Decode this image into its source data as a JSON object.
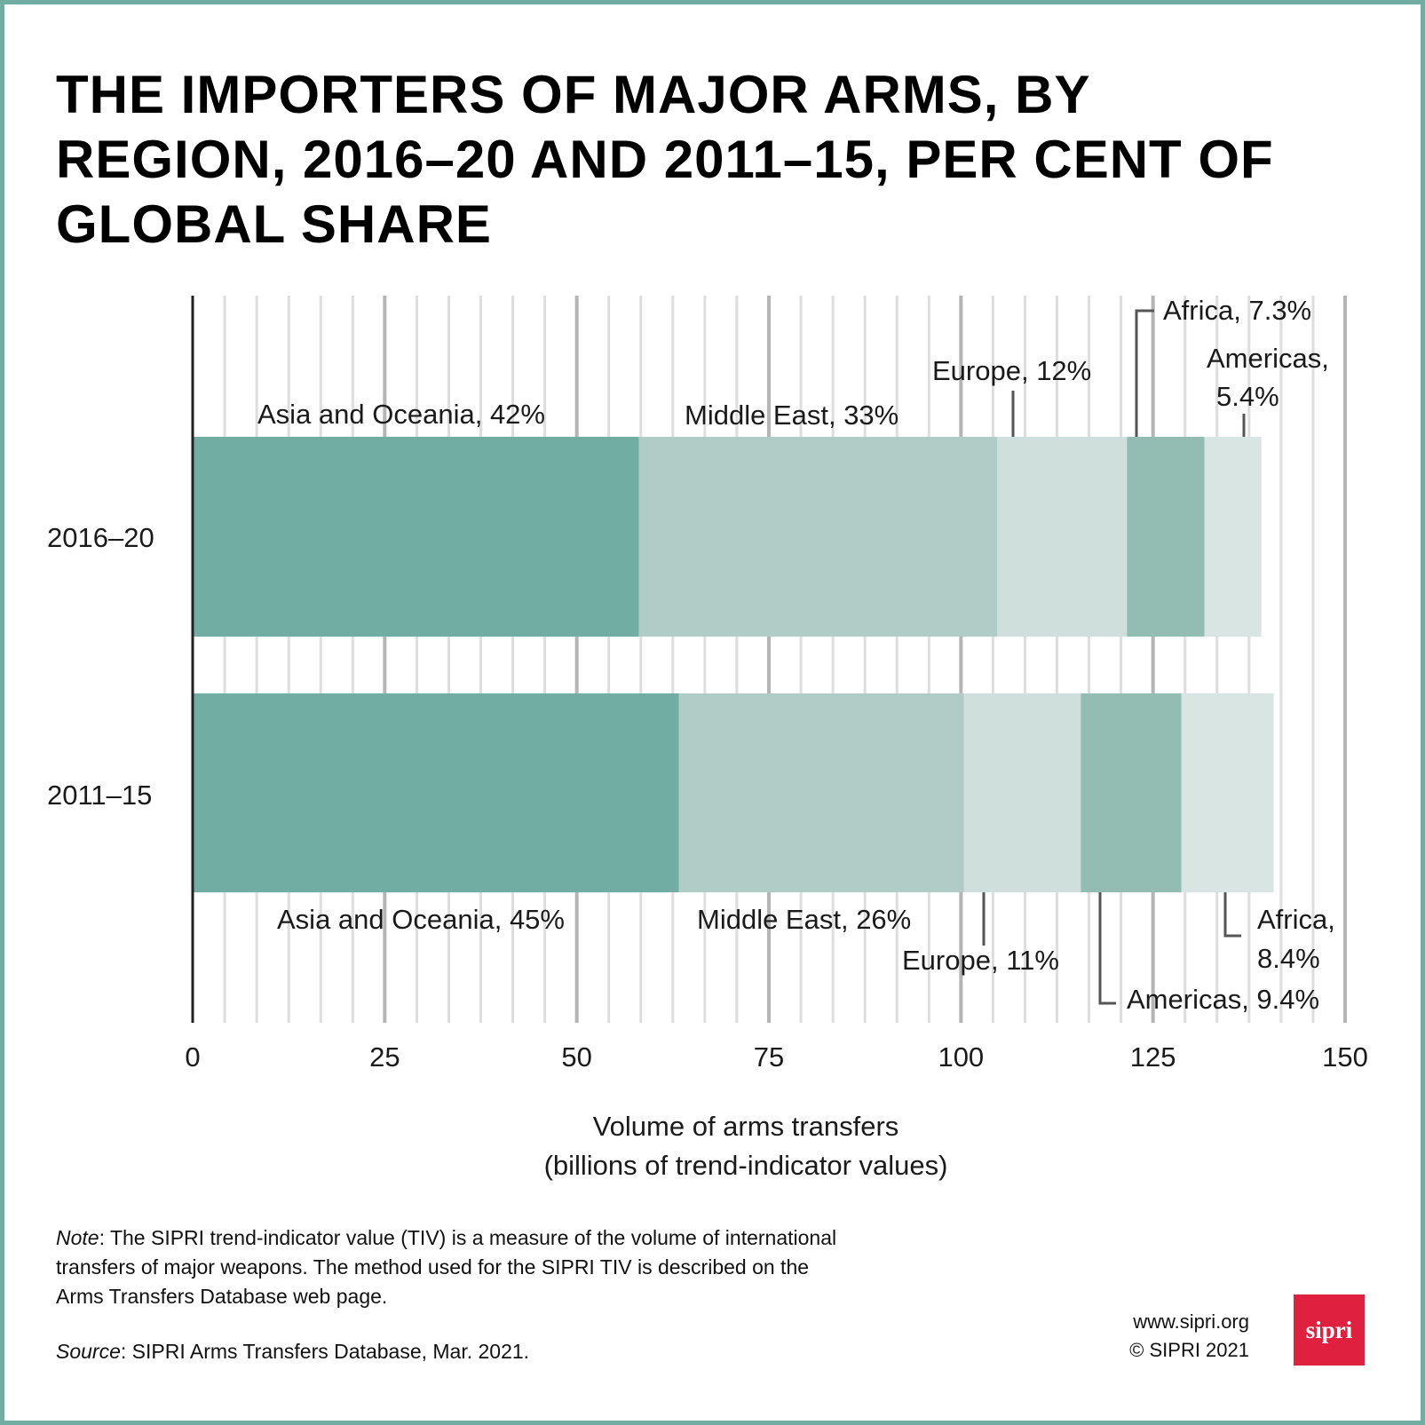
{
  "title": "THE IMPORTERS OF MAJOR ARMS, BY REGION, 2016–20 AND 2011–15, PER CENT OF GLOBAL SHARE",
  "chart_data": {
    "type": "bar",
    "orientation": "horizontal",
    "stacked": true,
    "categories": [
      "2016–20",
      "2011–15"
    ],
    "series": [
      {
        "segments": [
          {
            "region": "Asia and Oceania",
            "share": "42%",
            "value": 58.1,
            "color": "#72ada3"
          },
          {
            "region": "Middle East",
            "share": "33%",
            "value": 46.6,
            "color": "#b1ccc7"
          },
          {
            "region": "Europe",
            "share": "12%",
            "value": 16.9,
            "color": "#cfdfdc"
          },
          {
            "region": "Africa",
            "share": "7.3%",
            "value": 10.1,
            "color": "#93bcb3"
          },
          {
            "region": "Americas",
            "share": "5.4%",
            "value": 7.4,
            "color": "#d9e5e3"
          }
        ]
      },
      {
        "segments": [
          {
            "region": "Asia and Oceania",
            "share": "45%",
            "value": 63.3,
            "color": "#72ada3"
          },
          {
            "region": "Middle East",
            "share": "26%",
            "value": 37.1,
            "color": "#b1ccc7"
          },
          {
            "region": "Europe",
            "share": "11%",
            "value": 15.2,
            "color": "#cfdfdc"
          },
          {
            "region": "Americas",
            "share": "9.4%",
            "value": 13.1,
            "color": "#93bcb3"
          },
          {
            "region": "Africa",
            "share": "8.4%",
            "value": 12.0,
            "color": "#d9e5e3"
          }
        ]
      }
    ],
    "xlim": [
      0,
      150
    ],
    "xticks": [
      "0",
      "25",
      "50",
      "75",
      "100",
      "125",
      "150"
    ],
    "xlabel_line1": "Volume of arms transfers",
    "xlabel_line2": "(billions of trend-indicator values)",
    "grid": true,
    "labels": {
      "asia_1620": "Asia and Oceania, 42%",
      "me_1620": "Middle East, 33%",
      "europe_1620": "Europe, 12%",
      "africa_1620": "Africa, 7.3%",
      "americas_1620_a": "Americas,",
      "americas_1620_b": "5.4%",
      "asia_1115": "Asia and Oceania, 45%",
      "me_1115": "Middle East, 26%",
      "europe_1115": "Europe, 11%",
      "americas_1115": "Americas, 9.4%",
      "africa_1115_a": "Africa,",
      "africa_1115_b": "8.4%"
    }
  },
  "note": {
    "prefix": "Note",
    "line1": ": The SIPRI trend-indicator value (TIV) is a measure of the volume of international",
    "line2": "transfers of major weapons. The method used for the SIPRI TIV is described on the",
    "line3": "Arms Transfers Database web page."
  },
  "source": {
    "prefix": "Source",
    "text": ": SIPRI Arms Transfers Database, Mar. 2021."
  },
  "credit": {
    "url": "www.sipri.org",
    "copyright": "© SIPRI 2021"
  },
  "logo": {
    "text": "sipri",
    "color": "#e0203f"
  },
  "frame_color": "#72ada3"
}
